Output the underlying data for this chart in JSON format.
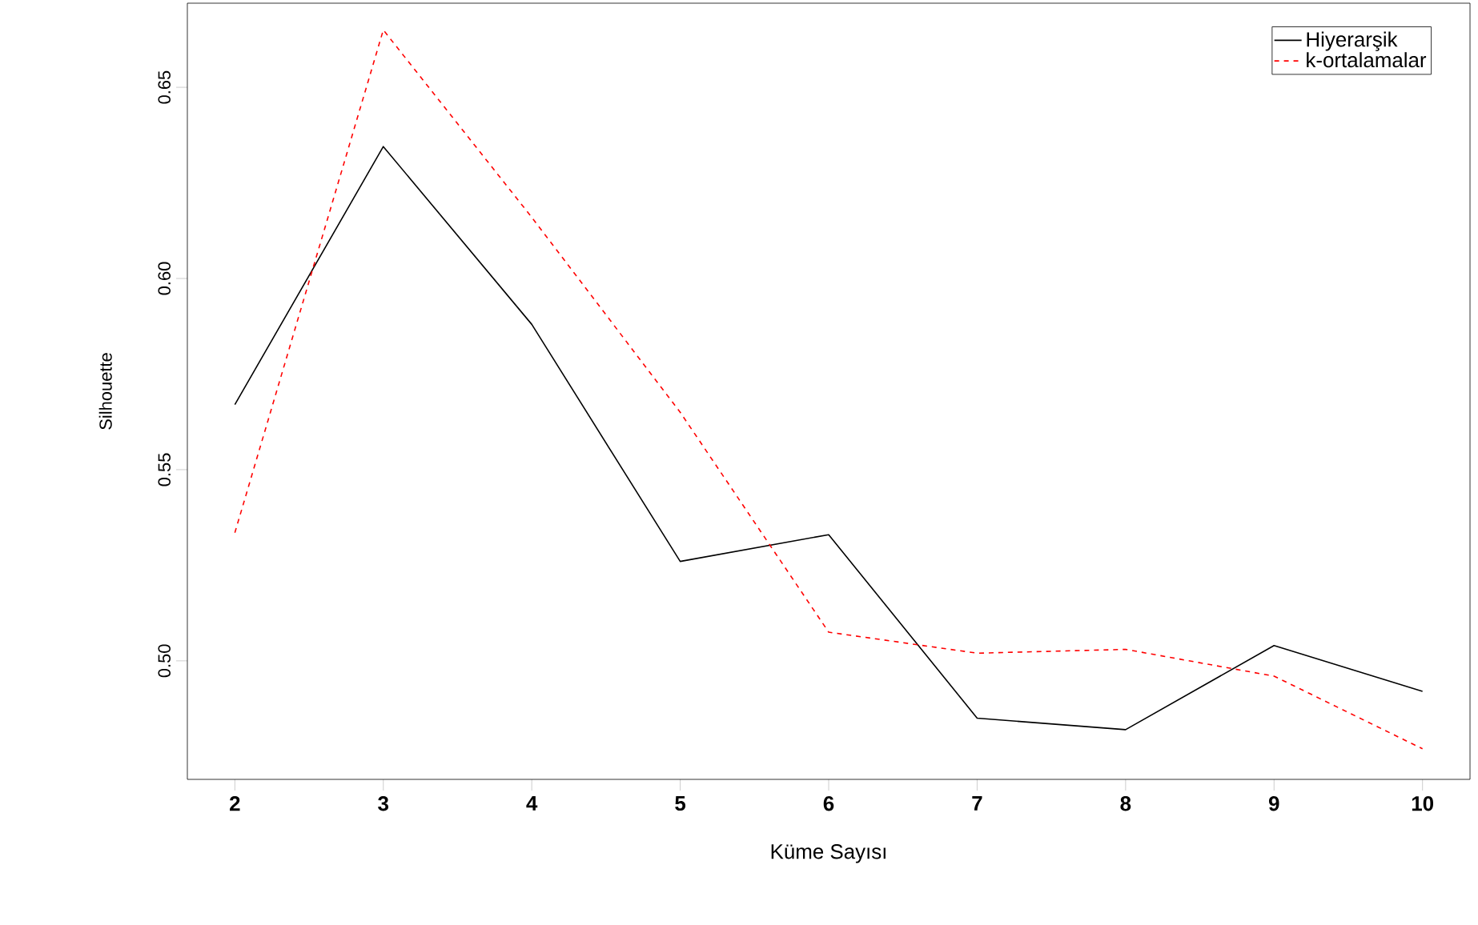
{
  "chart_data": {
    "type": "line",
    "xlabel": "Küme Sayısı",
    "ylabel": "Silhouette",
    "x": [
      2,
      3,
      4,
      5,
      6,
      7,
      8,
      9,
      10
    ],
    "series": [
      {
        "name": "Hiyerarşik",
        "color": "#000000",
        "line_style": "solid",
        "values": [
          0.567,
          0.6345,
          0.588,
          0.526,
          0.533,
          0.485,
          0.482,
          0.504,
          0.492
        ]
      },
      {
        "name": "k-ortalamalar",
        "color": "#ff0000",
        "line_style": "dashed",
        "values": [
          0.5335,
          0.665,
          0.616,
          0.565,
          0.5075,
          0.502,
          0.503,
          0.496,
          0.477
        ]
      }
    ],
    "xlim": [
      1.68,
      10.32
    ],
    "ylim": [
      0.469,
      0.672
    ],
    "xticks": [
      2,
      3,
      4,
      5,
      6,
      7,
      8,
      9,
      10
    ],
    "yticks": [
      {
        "value": 0.5,
        "label": "0.50"
      },
      {
        "value": 0.55,
        "label": "0.55"
      },
      {
        "value": 0.6,
        "label": "0.60"
      },
      {
        "value": 0.65,
        "label": "0.65"
      }
    ],
    "legend": "top right",
    "grid": false
  }
}
